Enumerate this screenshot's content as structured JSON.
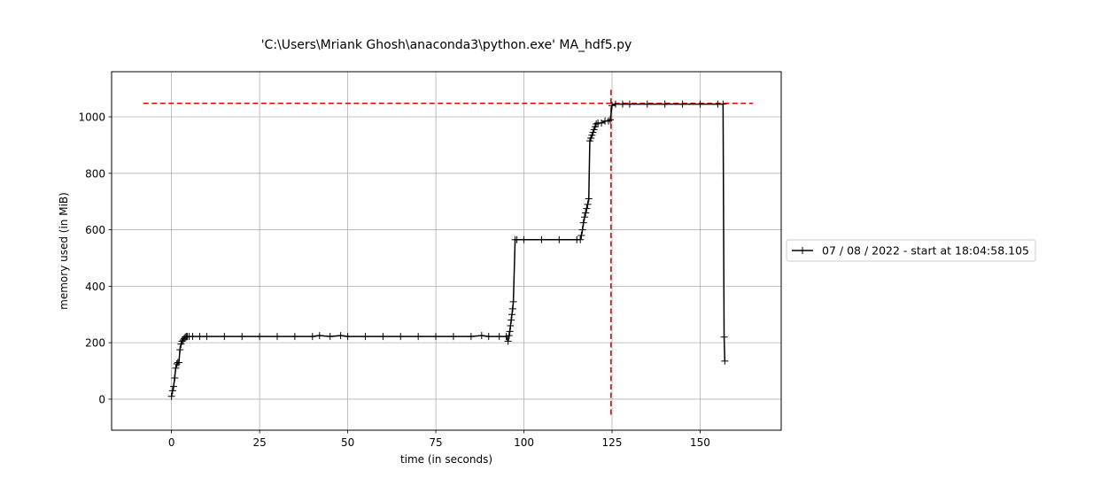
{
  "chart_data": {
    "type": "line",
    "title": "'C:\\Users\\Mriank Ghosh\\anaconda3\\python.exe' MA_hdf5.py",
    "xlabel": "time (in seconds)",
    "ylabel": "memory used (in MiB)",
    "xlim": [
      -17,
      173
    ],
    "ylim": [
      -110,
      1160
    ],
    "xticks": [
      0,
      25,
      50,
      75,
      100,
      125,
      150
    ],
    "yticks": [
      0,
      200,
      400,
      600,
      800,
      1000
    ],
    "grid": true,
    "legend_position": "right-outside",
    "series": [
      {
        "name": "07 / 08 / 2022 - start at 18:04:58.105",
        "color": "#000000",
        "marker": "plus",
        "x": [
          0,
          0.3,
          0.6,
          0.9,
          1.2,
          1.5,
          1.8,
          2.1,
          2.4,
          2.7,
          3.0,
          3.3,
          3.6,
          3.9,
          4.2,
          4.5,
          5,
          6,
          8,
          10,
          15,
          20,
          25,
          30,
          35,
          40,
          42,
          45,
          48,
          50,
          55,
          60,
          65,
          70,
          75,
          80,
          85,
          88,
          90,
          93,
          95,
          95.5,
          95.8,
          96.0,
          96.2,
          96.4,
          96.6,
          96.8,
          97.0,
          97.5,
          98,
          100,
          105,
          110,
          115,
          116,
          116.3,
          116.6,
          116.9,
          117.2,
          117.5,
          117.8,
          118.1,
          118.4,
          118.7,
          119.0,
          119.3,
          119.6,
          119.9,
          120.2,
          120.5,
          121,
          122,
          123,
          124,
          124.5,
          125,
          126,
          128,
          130,
          135,
          140,
          145,
          150,
          155,
          156.5,
          156.8,
          157.0
        ],
        "y": [
          10,
          30,
          45,
          75,
          110,
          125,
          130,
          130,
          175,
          195,
          205,
          210,
          215,
          220,
          222,
          222,
          222,
          222,
          222,
          222,
          222,
          222,
          222,
          222,
          222,
          222,
          225,
          222,
          225,
          222,
          222,
          222,
          222,
          222,
          222,
          222,
          222,
          225,
          222,
          222,
          222,
          205,
          225,
          240,
          260,
          280,
          300,
          320,
          345,
          565,
          565,
          565,
          565,
          565,
          565,
          565,
          580,
          600,
          625,
          645,
          660,
          675,
          690,
          710,
          915,
          925,
          935,
          945,
          955,
          965,
          975,
          978,
          978,
          985,
          985,
          990,
          1040,
          1045,
          1045,
          1045,
          1045,
          1045,
          1045,
          1045,
          1045,
          1045,
          220,
          135
        ]
      }
    ],
    "reference_lines": [
      {
        "orientation": "horizontal",
        "value": 1048,
        "from": -8,
        "to": 165,
        "color": "#e00000",
        "style": "dashed"
      },
      {
        "orientation": "vertical",
        "value": 124.7,
        "from": -55,
        "to": 1105,
        "color": "#e00000",
        "style": "dashed"
      }
    ]
  }
}
